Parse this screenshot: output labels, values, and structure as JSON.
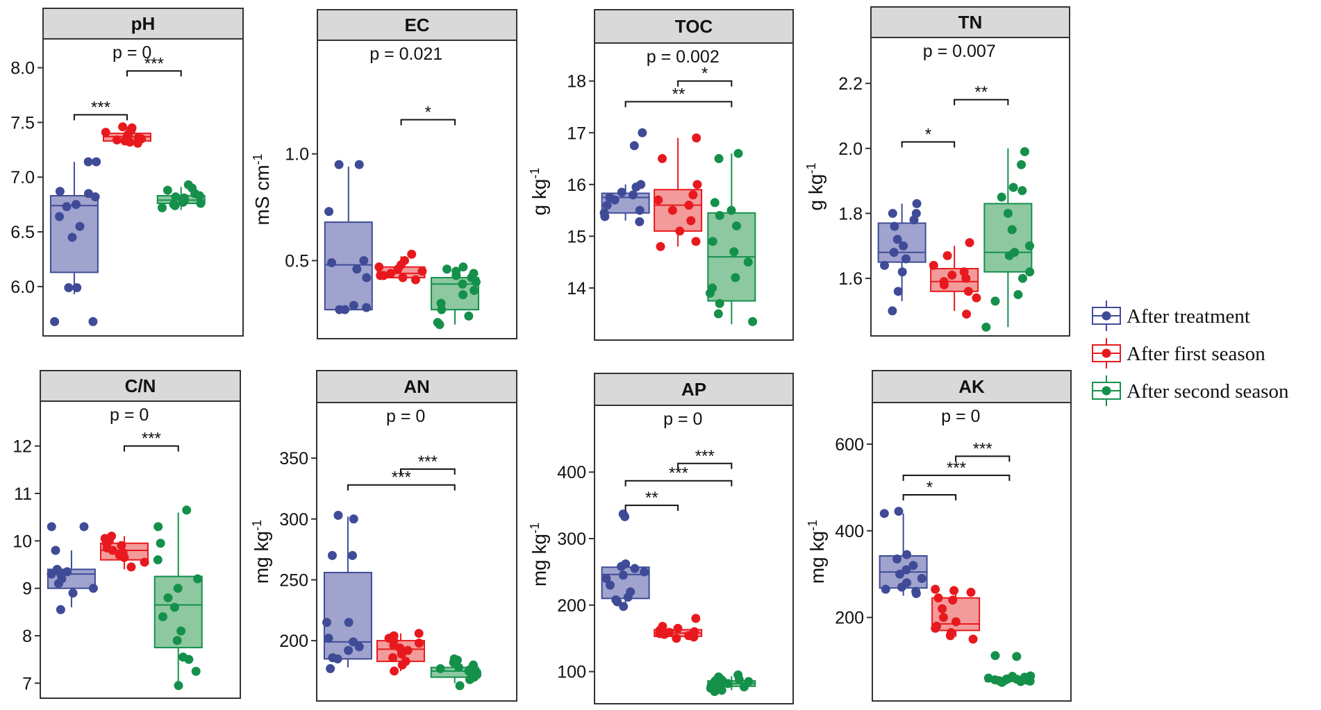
{
  "chart_data": {
    "type": "box",
    "legend": {
      "placement": "right",
      "entries": [
        {
          "name": "After treatment",
          "color": "#3F4B96",
          "fill": "#9FA3CE"
        },
        {
          "name": "After first season",
          "color": "#E8191E",
          "fill": "#F39B9B"
        },
        {
          "name": "After second season",
          "color": "#14904A",
          "fill": "#8DC8A1"
        }
      ]
    },
    "panels": [
      {
        "title": "pH",
        "ylabel": "",
        "ylim": [
          5.6,
          8.2
        ],
        "yticks": [
          "6.0",
          "6.5",
          "7.0",
          "7.5",
          "8.0"
        ],
        "pvalue": "p = 0",
        "boxes": [
          {
            "q1": 6.13,
            "median": 6.74,
            "q3": 6.83,
            "min": 5.93,
            "max": 7.14,
            "points": [
              5.68,
              5.68,
              5.99,
              5.99,
              6.45,
              6.55,
              6.64,
              6.73,
              6.75,
              6.82,
              6.85,
              6.87,
              7.14,
              7.14
            ]
          },
          {
            "q1": 7.33,
            "median": 7.37,
            "q3": 7.4,
            "min": 7.3,
            "max": 7.46,
            "points": [
              7.31,
              7.32,
              7.33,
              7.34,
              7.35,
              7.36,
              7.37,
              7.38,
              7.39,
              7.41,
              7.43,
              7.45,
              7.46
            ]
          },
          {
            "q1": 6.76,
            "median": 6.79,
            "q3": 6.83,
            "min": 6.7,
            "max": 6.91,
            "points": [
              6.72,
              6.74,
              6.75,
              6.76,
              6.77,
              6.78,
              6.79,
              6.8,
              6.81,
              6.82,
              6.83,
              6.85,
              6.88,
              6.9,
              6.93
            ]
          }
        ],
        "brackets": [
          {
            "from": 0,
            "to": 1,
            "y": 7.57,
            "label": "***"
          },
          {
            "from": 1,
            "to": 2,
            "y": 7.97,
            "label": "***"
          }
        ]
      },
      {
        "title": "EC",
        "ylabel": "mS cm-1",
        "ylim": [
          0.16,
          1.5
        ],
        "yticks": [
          "0.5",
          "1.0"
        ],
        "pvalue": "p = 0.021",
        "boxes": [
          {
            "q1": 0.27,
            "median": 0.48,
            "q3": 0.68,
            "min": 0.27,
            "max": 0.94,
            "points": [
              0.27,
              0.27,
              0.28,
              0.29,
              0.42,
              0.46,
              0.49,
              0.5,
              0.73,
              0.95,
              0.95
            ]
          },
          {
            "q1": 0.42,
            "median": 0.44,
            "q3": 0.47,
            "min": 0.41,
            "max": 0.52,
            "points": [
              0.41,
              0.42,
              0.43,
              0.43,
              0.44,
              0.45,
              0.46,
              0.47,
              0.48,
              0.5,
              0.53
            ]
          },
          {
            "q1": 0.27,
            "median": 0.39,
            "q3": 0.42,
            "min": 0.2,
            "max": 0.47,
            "points": [
              0.2,
              0.21,
              0.24,
              0.27,
              0.3,
              0.34,
              0.36,
              0.39,
              0.4,
              0.42,
              0.43,
              0.44,
              0.45,
              0.46,
              0.47
            ]
          }
        ],
        "brackets": [
          {
            "from": 1,
            "to": 2,
            "y": 1.16,
            "label": "*"
          }
        ]
      },
      {
        "title": "TOC",
        "ylabel": "g kg-1",
        "ylim": [
          13.1,
          18.6
        ],
        "yticks": [
          "14",
          "15",
          "16",
          "17",
          "18"
        ],
        "pvalue": "p = 0.002",
        "boxes": [
          {
            "q1": 15.45,
            "median": 15.75,
            "q3": 15.83,
            "min": 15.3,
            "max": 16.0,
            "points": [
              15.28,
              15.38,
              15.45,
              15.5,
              15.6,
              15.7,
              15.75,
              15.8,
              15.85,
              15.95,
              16.0,
              16.75,
              17.0
            ]
          },
          {
            "q1": 15.1,
            "median": 15.6,
            "q3": 15.9,
            "min": 14.8,
            "max": 16.9,
            "points": [
              14.8,
              14.9,
              15.1,
              15.3,
              15.5,
              15.6,
              15.7,
              15.8,
              16.0,
              16.5,
              16.9
            ]
          },
          {
            "q1": 13.75,
            "median": 14.6,
            "q3": 15.45,
            "min": 13.3,
            "max": 16.6,
            "points": [
              13.35,
              13.5,
              13.7,
              13.9,
              14.0,
              14.2,
              14.5,
              14.7,
              14.9,
              15.2,
              15.4,
              15.5,
              15.65,
              16.5,
              16.6
            ]
          }
        ],
        "brackets": [
          {
            "from": 0,
            "to": 2,
            "y": 17.6,
            "label": "**"
          },
          {
            "from": 1,
            "to": 2,
            "y": 18.0,
            "label": "*"
          }
        ]
      },
      {
        "title": "TN",
        "ylabel": "g kg-1",
        "ylim": [
          1.44,
          2.32
        ],
        "yticks": [
          "1.6",
          "1.8",
          "2.0",
          "2.2"
        ],
        "pvalue": "p = 0.007",
        "boxes": [
          {
            "q1": 1.65,
            "median": 1.68,
            "q3": 1.77,
            "min": 1.53,
            "max": 1.83,
            "points": [
              1.5,
              1.56,
              1.62,
              1.64,
              1.66,
              1.68,
              1.7,
              1.72,
              1.76,
              1.78,
              1.8,
              1.8,
              1.83
            ]
          },
          {
            "q1": 1.56,
            "median": 1.59,
            "q3": 1.63,
            "min": 1.5,
            "max": 1.7,
            "points": [
              1.49,
              1.54,
              1.56,
              1.58,
              1.59,
              1.6,
              1.61,
              1.62,
              1.64,
              1.67,
              1.71
            ]
          },
          {
            "q1": 1.62,
            "median": 1.68,
            "q3": 1.83,
            "min": 1.45,
            "max": 2.0,
            "points": [
              1.45,
              1.53,
              1.55,
              1.6,
              1.62,
              1.67,
              1.68,
              1.7,
              1.75,
              1.8,
              1.85,
              1.87,
              1.88,
              1.95,
              1.99
            ]
          }
        ],
        "brackets": [
          {
            "from": 0,
            "to": 1,
            "y": 2.02,
            "label": "*"
          },
          {
            "from": 1,
            "to": 2,
            "y": 2.15,
            "label": "**"
          }
        ]
      },
      {
        "title": "C/N",
        "ylabel": "",
        "ylim": [
          6.8,
          12.8
        ],
        "yticks": [
          "7",
          "8",
          "9",
          "10",
          "11",
          "12"
        ],
        "pvalue": "p = 0",
        "boxes": [
          {
            "q1": 9.0,
            "median": 9.3,
            "q3": 9.4,
            "min": 8.6,
            "max": 9.8,
            "points": [
              8.55,
              8.9,
              9.0,
              9.1,
              9.2,
              9.3,
              9.3,
              9.35,
              9.4,
              9.8,
              10.3,
              10.3
            ]
          },
          {
            "q1": 9.6,
            "median": 9.8,
            "q3": 9.95,
            "min": 9.4,
            "max": 10.1,
            "points": [
              9.45,
              9.55,
              9.65,
              9.7,
              9.75,
              9.8,
              9.85,
              9.9,
              9.95,
              10.0,
              10.05,
              10.1
            ]
          },
          {
            "q1": 7.75,
            "median": 8.65,
            "q3": 9.25,
            "min": 6.95,
            "max": 10.6,
            "points": [
              6.95,
              7.25,
              7.5,
              7.55,
              7.9,
              8.1,
              8.4,
              8.6,
              8.8,
              9.0,
              9.2,
              9.6,
              9.95,
              10.3,
              10.65
            ]
          }
        ],
        "brackets": [
          {
            "from": 1,
            "to": 2,
            "y": 12.0,
            "label": "***"
          }
        ]
      },
      {
        "title": "AN",
        "ylabel": "mg kg-1",
        "ylim": [
          155,
          390
        ],
        "yticks": [
          "200",
          "250",
          "300",
          "350"
        ],
        "pvalue": "p = 0",
        "boxes": [
          {
            "q1": 185,
            "median": 199,
            "q3": 256,
            "min": 178,
            "max": 302,
            "points": [
              177,
              185,
              186,
              192,
              195,
              199,
              202,
              215,
              215,
              270,
              270,
              300,
              303
            ]
          },
          {
            "q1": 183,
            "median": 193,
            "q3": 200,
            "min": 175,
            "max": 206,
            "points": [
              175,
              180,
              183,
              186,
              189,
              192,
              194,
              196,
              198,
              200,
              202,
              204,
              206
            ]
          },
          {
            "q1": 170,
            "median": 175,
            "q3": 178,
            "min": 165,
            "max": 185,
            "points": [
              163,
              168,
              170,
              172,
              174,
              175,
              176,
              177,
              178,
              180,
              182,
              184,
              185
            ]
          }
        ],
        "brackets": [
          {
            "from": 0,
            "to": 2,
            "y": 328,
            "label": "***"
          },
          {
            "from": 1,
            "to": 2,
            "y": 341,
            "label": "***"
          }
        ]
      },
      {
        "title": "AP",
        "ylabel": "mg kg-1",
        "ylim": [
          60,
          490
        ],
        "yticks": [
          "100",
          "200",
          "300",
          "400"
        ],
        "pvalue": "p = 0",
        "boxes": [
          {
            "q1": 210,
            "median": 246,
            "q3": 257,
            "min": 200,
            "max": 262,
            "points": [
              198,
              205,
              208,
              212,
              220,
              230,
              240,
              245,
              250,
              255,
              258,
              262,
              333,
              337
            ]
          },
          {
            "q1": 153,
            "median": 158,
            "q3": 163,
            "min": 150,
            "max": 168,
            "points": [
              150,
              152,
              154,
              156,
              157,
              158,
              159,
              160,
              162,
              165,
              168,
              180
            ]
          },
          {
            "q1": 78,
            "median": 82,
            "q3": 86,
            "min": 72,
            "max": 93,
            "points": [
              70,
              72,
              75,
              77,
              79,
              80,
              82,
              84,
              85,
              86,
              87,
              88,
              90,
              92,
              95
            ]
          }
        ],
        "brackets": [
          {
            "from": 0,
            "to": 1,
            "y": 350,
            "label": "**"
          },
          {
            "from": 0,
            "to": 2,
            "y": 387,
            "label": "***"
          },
          {
            "from": 1,
            "to": 2,
            "y": 413,
            "label": "***"
          }
        ]
      },
      {
        "title": "AK",
        "ylabel": "mg kg-1",
        "ylim": [
          20,
          680
        ],
        "yticks": [
          "200",
          "400",
          "600"
        ],
        "pvalue": "p = 0",
        "boxes": [
          {
            "q1": 268,
            "median": 305,
            "q3": 342,
            "min": 250,
            "max": 440,
            "points": [
              255,
              260,
              265,
              270,
              280,
              290,
              300,
              310,
              320,
              335,
              345,
              440,
              445
            ]
          },
          {
            "q1": 170,
            "median": 185,
            "q3": 245,
            "min": 155,
            "max": 263,
            "points": [
              150,
              158,
              165,
              175,
              180,
              190,
              200,
              220,
              240,
              245,
              258,
              262,
              265
            ]
          },
          {
            "q1": 52,
            "median": 55,
            "q3": 60,
            "min": 48,
            "max": 64,
            "points": [
              50,
              52,
              53,
              54,
              55,
              55,
              56,
              57,
              58,
              60,
              62,
              64,
              65,
              110,
              112
            ]
          }
        ],
        "brackets": [
          {
            "from": 0,
            "to": 1,
            "y": 483,
            "label": "*"
          },
          {
            "from": 0,
            "to": 2,
            "y": 528,
            "label": "***"
          },
          {
            "from": 1,
            "to": 2,
            "y": 572,
            "label": "***"
          }
        ]
      }
    ]
  }
}
